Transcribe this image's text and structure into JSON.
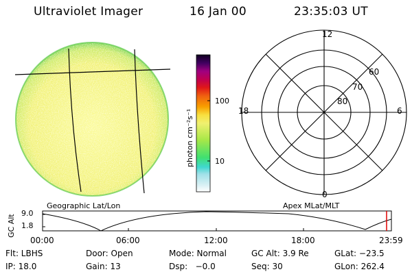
{
  "header": {
    "instrument": "Ultraviolet Imager",
    "date": "16 Jan 00",
    "time": "23:35:03 UT"
  },
  "colorbar": {
    "unit_label": "photon cm⁻²s⁻¹",
    "ticks": [
      "100",
      "10"
    ]
  },
  "labels": {
    "geo": "Geographic Lat/Lon",
    "apex": "Apex MLat/MLT"
  },
  "polar": {
    "mlt_labels": {
      "top": "12",
      "left": "18",
      "right": "6",
      "bottom": "0"
    },
    "lat_labels": [
      "60",
      "70",
      "80"
    ]
  },
  "altitude_plot": {
    "ylabel": "GC Alt",
    "yticks": [
      "9.0",
      "1.8"
    ],
    "xticks": [
      "00:00",
      "06:00",
      "12:00",
      "18:00",
      "23:59"
    ]
  },
  "info": {
    "flt": "Flt: LBHS",
    "door": "Door: Open",
    "mode": "Mode: Normal",
    "gc_alt": "GC Alt: 3.9 Re",
    "glat": "GLat: −23.5",
    "ip": "IP: 18.0",
    "gain": "Gain: 13",
    "dsp": "Dsp:   −0.0",
    "seq": "Seq: 30",
    "glon": "GLon: 262.4"
  },
  "colors": {
    "disk_main": "#f4f47a",
    "disk_edge": "#86dc5a",
    "polar_lines": "#000000"
  }
}
